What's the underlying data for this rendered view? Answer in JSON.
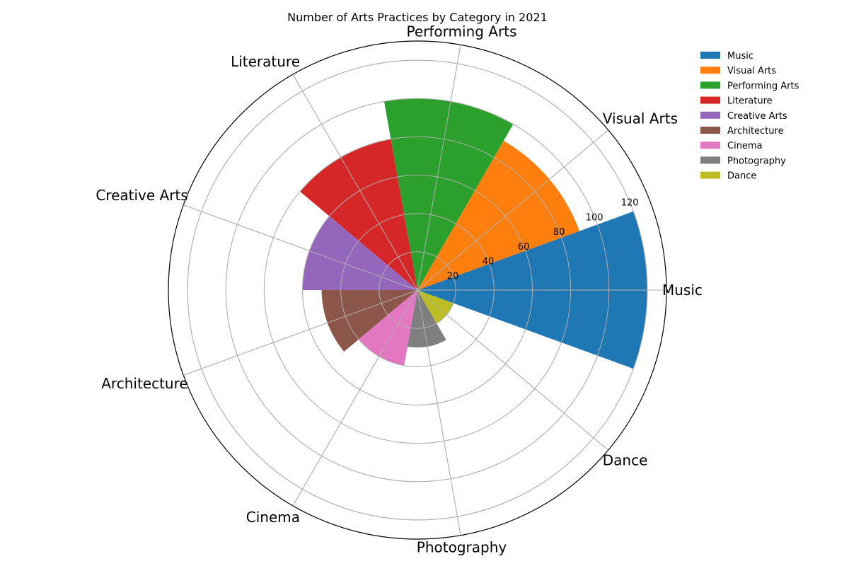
{
  "chart_data": {
    "type": "bar",
    "polar": true,
    "title": "Number of Arts Practices by Category in 2021",
    "categories": [
      "Music",
      "Visual Arts",
      "Performing Arts",
      "Literature",
      "Creative Arts",
      "Architecture",
      "Cinema",
      "Photography",
      "Dance"
    ],
    "values": [
      120,
      90,
      100,
      80,
      60,
      50,
      40,
      30,
      20
    ],
    "colors": [
      "#1f77b4",
      "#ff7f0e",
      "#2ca02c",
      "#d62728",
      "#9467bd",
      "#8c564b",
      "#e377c2",
      "#7f7f7f",
      "#bcbd22"
    ],
    "rlim": [
      0,
      130
    ],
    "rticks": [
      20,
      40,
      60,
      80,
      100,
      120
    ],
    "grid": true,
    "legend": {
      "placement": "top-right",
      "entries": [
        "Music",
        "Visual Arts",
        "Performing Arts",
        "Literature",
        "Creative Arts",
        "Architecture",
        "Cinema",
        "Photography",
        "Dance"
      ]
    }
  }
}
